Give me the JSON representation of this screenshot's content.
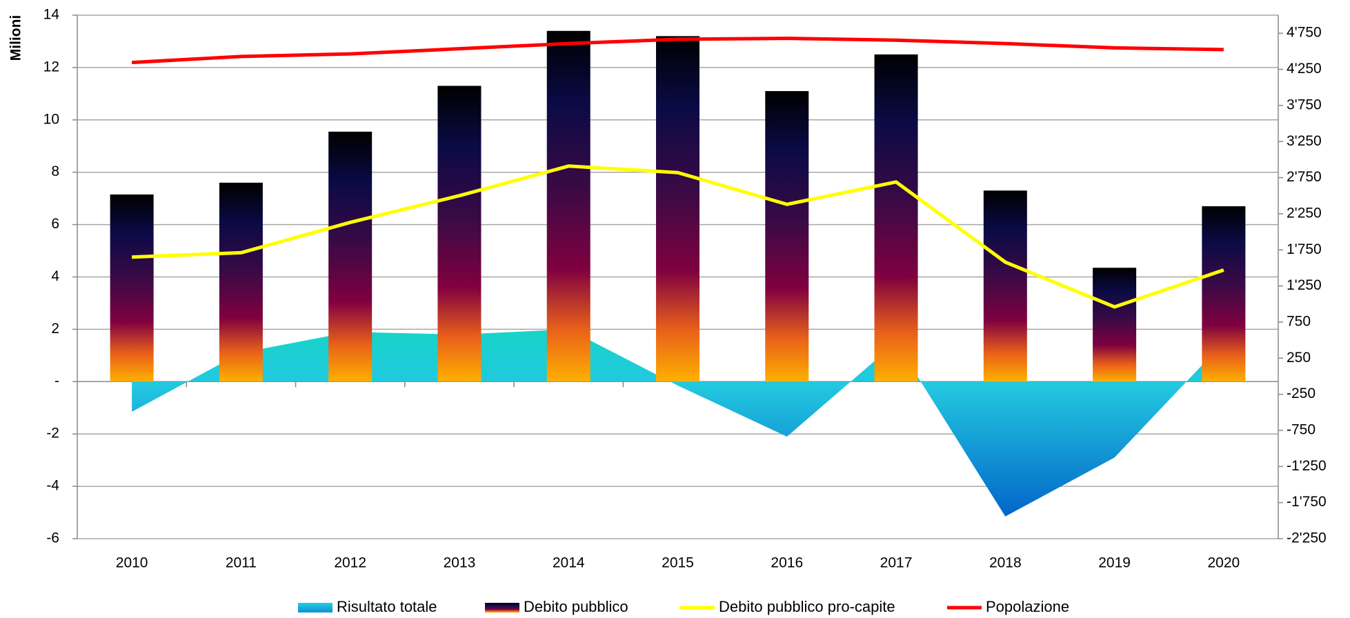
{
  "chart_data": {
    "type": "combo",
    "y_label": "Milioni",
    "categories": [
      "2010",
      "2011",
      "2012",
      "2013",
      "2014",
      "2015",
      "2016",
      "2017",
      "2018",
      "2019",
      "2020"
    ],
    "series": [
      {
        "name": "Risultato totale",
        "type": "area",
        "color": "#22c8d8",
        "axis": "y",
        "values": [
          -1.15,
          1.1,
          1.9,
          1.8,
          2.0,
          -0.15,
          -2.1,
          1.5,
          -5.15,
          -2.9,
          1.5
        ]
      },
      {
        "name": "Debito pubblico",
        "type": "bar",
        "color": "#1a0a3a",
        "axis": "y",
        "values": [
          7.15,
          7.6,
          9.55,
          11.3,
          13.4,
          13.2,
          11.1,
          12.5,
          7.3,
          4.35,
          6.7
        ]
      },
      {
        "name": "Debito pubblico pro-capite",
        "type": "line",
        "color": "#ffff00",
        "axis": "y2",
        "values": [
          1650,
          1710,
          2130,
          2500,
          2910,
          2820,
          2380,
          2690,
          1580,
          960,
          1470
        ]
      },
      {
        "name": "Popolazione",
        "type": "line",
        "color": "#ff0000",
        "axis": "y2",
        "values": [
          4345,
          4428,
          4464,
          4535,
          4607,
          4667,
          4679,
          4654,
          4607,
          4547,
          4523
        ]
      }
    ],
    "ylim": [
      -6,
      14
    ],
    "yticks": [
      -6,
      -4,
      -2,
      {
        "value": 0,
        "label": "-"
      },
      2,
      4,
      6,
      8,
      10,
      12,
      14
    ],
    "y2lim": [
      -2250,
      5000
    ],
    "y2ticks": [
      {
        "value": -2250,
        "label": "-2'250"
      },
      {
        "value": -1750,
        "label": "-1'750"
      },
      {
        "value": -1250,
        "label": "-1'250"
      },
      -750,
      -250,
      250,
      750,
      {
        "value": 1250,
        "label": "1'250"
      },
      {
        "value": 1750,
        "label": "1'750"
      },
      {
        "value": 2250,
        "label": "2'250"
      },
      {
        "value": 2750,
        "label": "2'750"
      },
      {
        "value": 3250,
        "label": "3'250"
      },
      {
        "value": 3750,
        "label": "3'750"
      },
      {
        "value": 4250,
        "label": "4'250"
      },
      {
        "value": 4750,
        "label": "4'750"
      }
    ],
    "grid": true,
    "legend": "bottom"
  }
}
